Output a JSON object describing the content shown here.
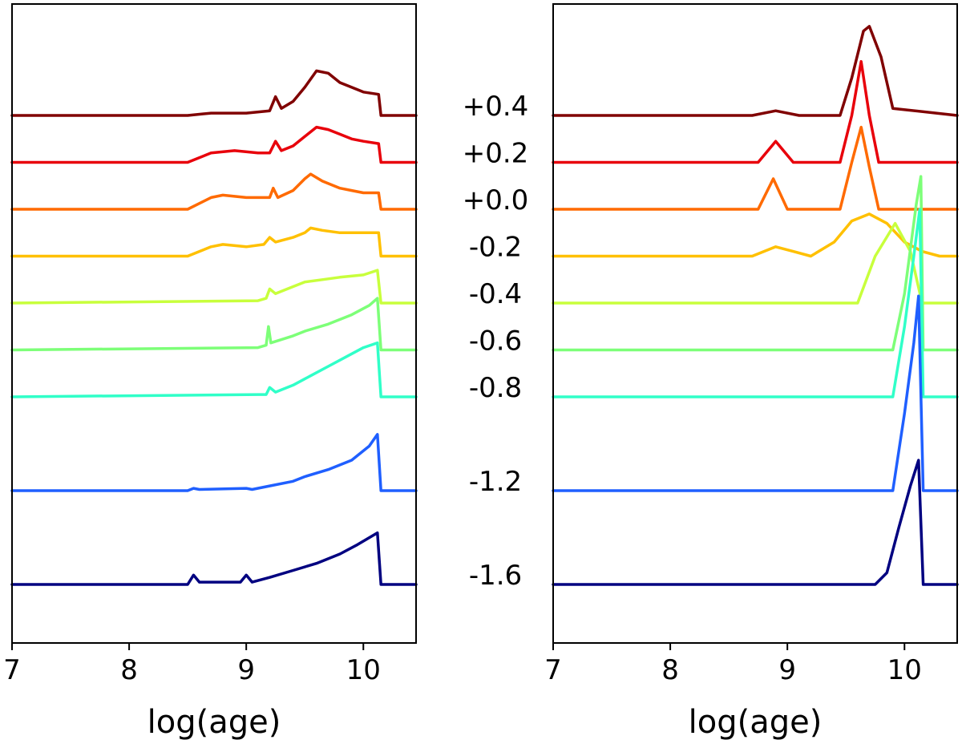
{
  "chart_data": [
    {
      "type": "line",
      "panel": "left",
      "xlabel": "log(age)",
      "ylabel": "",
      "xlim": [
        7,
        10.45
      ],
      "xticks": [
        7,
        8,
        9,
        10
      ],
      "xtick_labels": [
        "7",
        "8",
        "9",
        "10"
      ],
      "yticks": [],
      "series": [
        {
          "name": "+0.4",
          "color": "#800000",
          "baseline": 0.4,
          "points": [
            [
              7,
              0
            ],
            [
              8.5,
              0
            ],
            [
              8.7,
              0.01
            ],
            [
              9.0,
              0.01
            ],
            [
              9.2,
              0.02
            ],
            [
              9.25,
              0.08
            ],
            [
              9.3,
              0.03
            ],
            [
              9.4,
              0.06
            ],
            [
              9.5,
              0.12
            ],
            [
              9.6,
              0.19
            ],
            [
              9.7,
              0.18
            ],
            [
              9.8,
              0.14
            ],
            [
              9.9,
              0.12
            ],
            [
              10.0,
              0.1
            ],
            [
              10.13,
              0.09
            ],
            [
              10.15,
              0
            ],
            [
              10.45,
              0
            ]
          ]
        },
        {
          "name": "+0.2",
          "color": "#e8000b",
          "baseline": 0.2,
          "points": [
            [
              7,
              0
            ],
            [
              8.5,
              0
            ],
            [
              8.7,
              0.04
            ],
            [
              8.9,
              0.05
            ],
            [
              9.1,
              0.04
            ],
            [
              9.2,
              0.04
            ],
            [
              9.25,
              0.09
            ],
            [
              9.3,
              0.05
            ],
            [
              9.4,
              0.07
            ],
            [
              9.5,
              0.11
            ],
            [
              9.6,
              0.15
            ],
            [
              9.7,
              0.14
            ],
            [
              9.8,
              0.12
            ],
            [
              9.9,
              0.1
            ],
            [
              10.0,
              0.09
            ],
            [
              10.13,
              0.08
            ],
            [
              10.15,
              0
            ],
            [
              10.45,
              0
            ]
          ]
        },
        {
          "name": "+0.0",
          "color": "#ff6a00",
          "baseline": 0.0,
          "points": [
            [
              7,
              0
            ],
            [
              8.5,
              0
            ],
            [
              8.7,
              0.05
            ],
            [
              8.8,
              0.06
            ],
            [
              9.0,
              0.05
            ],
            [
              9.2,
              0.05
            ],
            [
              9.23,
              0.09
            ],
            [
              9.27,
              0.05
            ],
            [
              9.4,
              0.08
            ],
            [
              9.5,
              0.13
            ],
            [
              9.55,
              0.15
            ],
            [
              9.65,
              0.12
            ],
            [
              9.8,
              0.09
            ],
            [
              9.9,
              0.08
            ],
            [
              10.0,
              0.07
            ],
            [
              10.13,
              0.07
            ],
            [
              10.15,
              0
            ],
            [
              10.45,
              0
            ]
          ]
        },
        {
          "name": "-0.2",
          "color": "#ffc000",
          "baseline": -0.2,
          "points": [
            [
              7,
              0
            ],
            [
              8.5,
              0
            ],
            [
              8.7,
              0.04
            ],
            [
              8.8,
              0.05
            ],
            [
              9.0,
              0.04
            ],
            [
              9.15,
              0.05
            ],
            [
              9.2,
              0.08
            ],
            [
              9.25,
              0.06
            ],
            [
              9.4,
              0.08
            ],
            [
              9.5,
              0.1
            ],
            [
              9.55,
              0.12
            ],
            [
              9.65,
              0.11
            ],
            [
              9.8,
              0.1
            ],
            [
              10.0,
              0.1
            ],
            [
              10.13,
              0.1
            ],
            [
              10.15,
              0
            ],
            [
              10.45,
              0
            ]
          ]
        },
        {
          "name": "-0.4",
          "color": "#c8ff3c",
          "baseline": -0.4,
          "points": [
            [
              7,
              0
            ],
            [
              9.1,
              0.01
            ],
            [
              9.17,
              0.02
            ],
            [
              9.2,
              0.06
            ],
            [
              9.25,
              0.04
            ],
            [
              9.4,
              0.07
            ],
            [
              9.5,
              0.09
            ],
            [
              9.65,
              0.1
            ],
            [
              9.8,
              0.11
            ],
            [
              10.0,
              0.12
            ],
            [
              10.12,
              0.14
            ],
            [
              10.15,
              0
            ],
            [
              10.45,
              0
            ]
          ]
        },
        {
          "name": "-0.6",
          "color": "#7dff78",
          "baseline": -0.6,
          "points": [
            [
              7,
              0
            ],
            [
              9.1,
              0.01
            ],
            [
              9.17,
              0.02
            ],
            [
              9.19,
              0.1
            ],
            [
              9.21,
              0.03
            ],
            [
              9.4,
              0.06
            ],
            [
              9.5,
              0.08
            ],
            [
              9.7,
              0.11
            ],
            [
              9.9,
              0.15
            ],
            [
              10.05,
              0.19
            ],
            [
              10.12,
              0.22
            ],
            [
              10.15,
              0
            ],
            [
              10.45,
              0
            ]
          ]
        },
        {
          "name": "-0.8",
          "color": "#30ffc8",
          "baseline": -0.8,
          "points": [
            [
              7,
              0
            ],
            [
              9.1,
              0.01
            ],
            [
              9.17,
              0.01
            ],
            [
              9.2,
              0.04
            ],
            [
              9.25,
              0.02
            ],
            [
              9.4,
              0.05
            ],
            [
              9.55,
              0.09
            ],
            [
              9.7,
              0.13
            ],
            [
              9.85,
              0.17
            ],
            [
              10.0,
              0.21
            ],
            [
              10.12,
              0.23
            ],
            [
              10.15,
              0
            ],
            [
              10.45,
              0
            ]
          ]
        },
        {
          "name": "-1.2",
          "color": "#1f5fff",
          "baseline": -1.2,
          "points": [
            [
              7,
              0
            ],
            [
              8.5,
              0
            ],
            [
              8.55,
              0.01
            ],
            [
              8.6,
              0.005
            ],
            [
              9.0,
              0.01
            ],
            [
              9.05,
              0.005
            ],
            [
              9.2,
              0.02
            ],
            [
              9.4,
              0.04
            ],
            [
              9.5,
              0.06
            ],
            [
              9.7,
              0.09
            ],
            [
              9.9,
              0.13
            ],
            [
              10.0,
              0.17
            ],
            [
              10.05,
              0.19
            ],
            [
              10.12,
              0.24
            ],
            [
              10.15,
              0
            ],
            [
              10.45,
              0
            ]
          ]
        },
        {
          "name": "-1.6",
          "color": "#000080",
          "baseline": -1.6,
          "points": [
            [
              7,
              0
            ],
            [
              8.5,
              0
            ],
            [
              8.55,
              0.04
            ],
            [
              8.6,
              0.01
            ],
            [
              8.95,
              0.01
            ],
            [
              9.0,
              0.04
            ],
            [
              9.05,
              0.01
            ],
            [
              9.2,
              0.03
            ],
            [
              9.4,
              0.06
            ],
            [
              9.6,
              0.09
            ],
            [
              9.8,
              0.13
            ],
            [
              9.95,
              0.17
            ],
            [
              10.12,
              0.22
            ],
            [
              10.15,
              0
            ],
            [
              10.45,
              0
            ]
          ]
        }
      ]
    },
    {
      "type": "line",
      "panel": "right",
      "xlabel": "log(age)",
      "ylabel": "",
      "xlim": [
        7,
        10.45
      ],
      "xticks": [
        7,
        8,
        9,
        10
      ],
      "xtick_labels": [
        "7",
        "8",
        "9",
        "10"
      ],
      "yticks": [],
      "series": [
        {
          "name": "+0.4",
          "color": "#800000",
          "baseline": 0.4,
          "points": [
            [
              7,
              0
            ],
            [
              8.7,
              0
            ],
            [
              8.9,
              0.02
            ],
            [
              9.1,
              0
            ],
            [
              9.45,
              0
            ],
            [
              9.55,
              0.16
            ],
            [
              9.65,
              0.36
            ],
            [
              9.7,
              0.38
            ],
            [
              9.8,
              0.25
            ],
            [
              9.9,
              0.03
            ],
            [
              10.45,
              0
            ]
          ]
        },
        {
          "name": "+0.2",
          "color": "#e8000b",
          "baseline": 0.2,
          "points": [
            [
              7,
              0
            ],
            [
              8.75,
              0
            ],
            [
              8.9,
              0.09
            ],
            [
              9.05,
              0
            ],
            [
              9.45,
              0
            ],
            [
              9.55,
              0.2
            ],
            [
              9.63,
              0.43
            ],
            [
              9.7,
              0.2
            ],
            [
              9.78,
              0
            ],
            [
              10.45,
              0
            ]
          ]
        },
        {
          "name": "+0.0",
          "color": "#ff6a00",
          "baseline": 0.0,
          "points": [
            [
              7,
              0
            ],
            [
              8.75,
              0
            ],
            [
              8.88,
              0.13
            ],
            [
              9.0,
              0
            ],
            [
              9.45,
              0
            ],
            [
              9.55,
              0.2
            ],
            [
              9.63,
              0.35
            ],
            [
              9.7,
              0.18
            ],
            [
              9.78,
              0
            ],
            [
              10.45,
              0
            ]
          ]
        },
        {
          "name": "-0.2",
          "color": "#ffc000",
          "baseline": -0.2,
          "points": [
            [
              7,
              0
            ],
            [
              8.7,
              0
            ],
            [
              8.9,
              0.04
            ],
            [
              9.05,
              0.02
            ],
            [
              9.2,
              0
            ],
            [
              9.4,
              0.06
            ],
            [
              9.55,
              0.15
            ],
            [
              9.7,
              0.18
            ],
            [
              9.85,
              0.14
            ],
            [
              10.0,
              0.06
            ],
            [
              10.15,
              0.02
            ],
            [
              10.3,
              0
            ],
            [
              10.45,
              0
            ]
          ]
        },
        {
          "name": "-0.4",
          "color": "#c8ff3c",
          "baseline": -0.4,
          "points": [
            [
              7,
              0
            ],
            [
              9.6,
              0
            ],
            [
              9.75,
              0.2
            ],
            [
              9.92,
              0.34
            ],
            [
              10.05,
              0.22
            ],
            [
              10.15,
              0
            ],
            [
              10.45,
              0
            ]
          ]
        },
        {
          "name": "-0.6",
          "color": "#7dff78",
          "baseline": -0.6,
          "points": [
            [
              7,
              0
            ],
            [
              9.9,
              0
            ],
            [
              10.0,
              0.24
            ],
            [
              10.1,
              0.62
            ],
            [
              10.14,
              0.74
            ],
            [
              10.16,
              0
            ],
            [
              10.45,
              0
            ]
          ]
        },
        {
          "name": "-0.8",
          "color": "#30ffc8",
          "baseline": -0.8,
          "points": [
            [
              7,
              0
            ],
            [
              9.9,
              0
            ],
            [
              10.0,
              0.3
            ],
            [
              10.08,
              0.6
            ],
            [
              10.13,
              0.8
            ],
            [
              10.16,
              0
            ],
            [
              10.45,
              0
            ]
          ]
        },
        {
          "name": "-1.2",
          "color": "#1f5fff",
          "baseline": -1.2,
          "points": [
            [
              7,
              0
            ],
            [
              9.9,
              0
            ],
            [
              10.0,
              0.33
            ],
            [
              10.08,
              0.63
            ],
            [
              10.12,
              0.83
            ],
            [
              10.16,
              0
            ],
            [
              10.45,
              0
            ]
          ]
        },
        {
          "name": "-1.6",
          "color": "#000080",
          "baseline": -1.6,
          "points": [
            [
              7,
              0
            ],
            [
              9.75,
              0
            ],
            [
              9.85,
              0.05
            ],
            [
              9.95,
              0.24
            ],
            [
              10.05,
              0.42
            ],
            [
              10.12,
              0.53
            ],
            [
              10.16,
              0
            ],
            [
              10.45,
              0
            ]
          ]
        }
      ]
    }
  ]
}
